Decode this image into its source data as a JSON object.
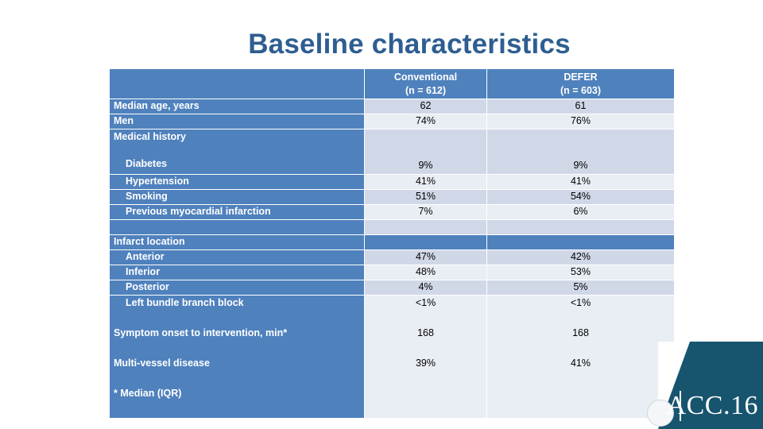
{
  "title": "Baseline characteristics",
  "table": {
    "columns": {
      "conventional": {
        "line1": "Conventional",
        "line2": "(n = 612)"
      },
      "defer": {
        "line1": "DEFER",
        "line2": "(n = 603)"
      }
    },
    "rows": {
      "age": {
        "label": "Median age, years",
        "conventional": "62",
        "defer": "61"
      },
      "men": {
        "label": "Men",
        "conventional": "74%",
        "defer": "76%"
      },
      "history": {
        "label": "Medical history",
        "sublabel": "Diabetes",
        "conventional": "9%",
        "defer": "9%"
      },
      "hypertension": {
        "label": "Hypertension",
        "conventional": "41%",
        "defer": "41%"
      },
      "smoking": {
        "label": "Smoking",
        "conventional": "51%",
        "defer": "54%"
      },
      "prev_mi": {
        "label": "Previous myocardial infarction",
        "conventional": "7%",
        "defer": "6%"
      },
      "infarct_location": {
        "label": "Infarct location"
      },
      "anterior": {
        "label": "Anterior",
        "conventional": "47%",
        "defer": "42%"
      },
      "inferior": {
        "label": "Inferior",
        "conventional": "48%",
        "defer": "53%"
      },
      "posterior": {
        "label": "Posterior",
        "conventional": "4%",
        "defer": "5%"
      },
      "lbbb": {
        "label": "Left bundle branch block",
        "conventional": "<1%",
        "defer": "<1%"
      },
      "onset": {
        "label": "Symptom onset to intervention, min*",
        "conventional": "168",
        "defer": "168"
      },
      "multivessel": {
        "label": "Multi-vessel disease",
        "conventional": "39%",
        "defer": "41%"
      },
      "footnote": "* Median (IQR)"
    }
  },
  "logo": {
    "text": "ACC.16"
  },
  "colors": {
    "title": "#2E5E91",
    "header": "#4F81BD",
    "row_dark": "#D0D8E8",
    "row_light": "#E9EDF4",
    "logo_band": "#17546E"
  }
}
